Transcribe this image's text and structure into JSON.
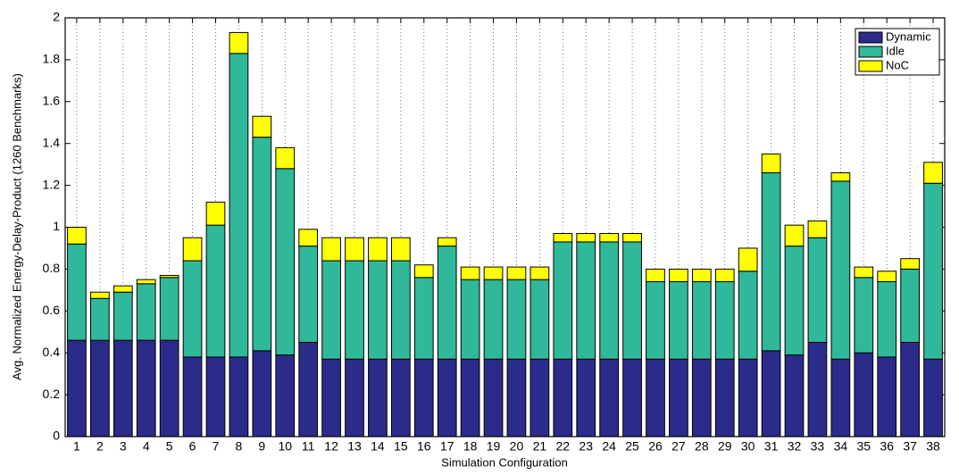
{
  "chart_data": {
    "type": "stacked_bar",
    "ylabel": "Avg. Normalized Energy-Delay-Product (1260 Benchmarks)",
    "xlabel": "Simulation Configuration",
    "categories": [
      "1",
      "2",
      "3",
      "4",
      "5",
      "6",
      "7",
      "8",
      "9",
      "10",
      "11",
      "12",
      "13",
      "14",
      "15",
      "16",
      "17",
      "18",
      "19",
      "20",
      "21",
      "22",
      "23",
      "24",
      "25",
      "26",
      "27",
      "28",
      "29",
      "30",
      "31",
      "32",
      "33",
      "34",
      "35",
      "36",
      "37",
      "38"
    ],
    "series": [
      {
        "name": "Dynamic",
        "color": "#2b2b8c",
        "values": [
          0.46,
          0.46,
          0.46,
          0.46,
          0.46,
          0.38,
          0.38,
          0.38,
          0.41,
          0.39,
          0.45,
          0.37,
          0.37,
          0.37,
          0.37,
          0.37,
          0.37,
          0.37,
          0.37,
          0.37,
          0.37,
          0.37,
          0.37,
          0.37,
          0.37,
          0.37,
          0.37,
          0.37,
          0.37,
          0.37,
          0.41,
          0.39,
          0.45,
          0.37,
          0.4,
          0.38,
          0.45,
          0.37
        ]
      },
      {
        "name": "Idle",
        "color": "#2fb89a",
        "values": [
          0.46,
          0.2,
          0.23,
          0.27,
          0.3,
          0.46,
          0.63,
          1.45,
          1.02,
          0.89,
          0.46,
          0.47,
          0.47,
          0.47,
          0.47,
          0.39,
          0.54,
          0.38,
          0.38,
          0.38,
          0.38,
          0.56,
          0.56,
          0.56,
          0.56,
          0.37,
          0.37,
          0.37,
          0.37,
          0.42,
          0.85,
          0.52,
          0.5,
          0.85,
          0.36,
          0.36,
          0.35,
          0.84
        ]
      },
      {
        "name": "NoC",
        "color": "#ffff00",
        "values": [
          0.08,
          0.03,
          0.03,
          0.02,
          0.01,
          0.11,
          0.11,
          0.1,
          0.1,
          0.1,
          0.08,
          0.11,
          0.11,
          0.11,
          0.11,
          0.06,
          0.04,
          0.06,
          0.06,
          0.06,
          0.06,
          0.04,
          0.04,
          0.04,
          0.04,
          0.06,
          0.06,
          0.06,
          0.06,
          0.11,
          0.09,
          0.1,
          0.08,
          0.04,
          0.05,
          0.05,
          0.05,
          0.1
        ]
      }
    ],
    "ylim": [
      0,
      2
    ],
    "yticks": [
      0,
      0.2,
      0.4,
      0.6,
      0.8,
      1,
      1.2,
      1.4,
      1.6,
      1.8,
      2
    ],
    "grid": true,
    "legend": "top-right"
  }
}
